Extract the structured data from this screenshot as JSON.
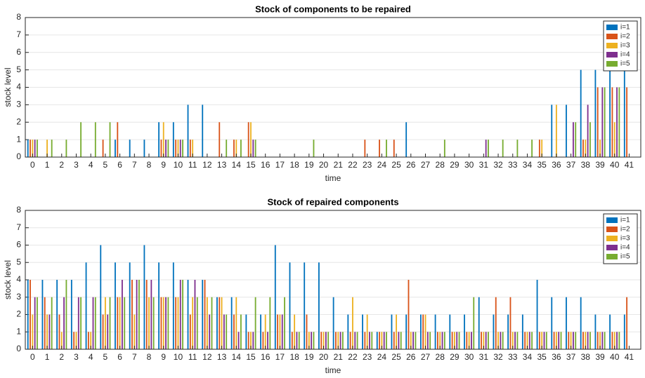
{
  "chart_data": [
    {
      "type": "bar",
      "title": "Stock of components to be repaired",
      "x_label": "time",
      "y_label": "stock level",
      "categories": [
        "0",
        "1",
        "2",
        "3",
        "4",
        "5",
        "6",
        "7",
        "8",
        "9",
        "10",
        "11",
        "12",
        "13",
        "14",
        "15",
        "16",
        "17",
        "18",
        "19",
        "20",
        "21",
        "22",
        "23",
        "24",
        "25",
        "26",
        "27",
        "28",
        "29",
        "30",
        "31",
        "32",
        "33",
        "34",
        "35",
        "36",
        "37",
        "38",
        "39",
        "40",
        "41"
      ],
      "ylim": [
        0,
        8
      ],
      "yticks": [
        0,
        1,
        2,
        3,
        4,
        5,
        6,
        7,
        8
      ],
      "legend": "upper right",
      "series": [
        {
          "name": "i=1",
          "color": "#0072BD",
          "values": [
            1,
            0,
            0,
            0,
            0,
            0,
            1,
            1,
            1,
            2,
            2,
            3,
            3,
            0,
            0,
            0,
            0,
            0,
            0,
            0,
            0,
            0,
            0,
            0,
            0,
            0,
            2,
            0,
            0,
            0,
            0,
            0,
            0,
            0,
            0,
            0,
            3,
            3,
            5,
            5,
            5,
            5
          ]
        },
        {
          "name": "i=2",
          "color": "#D95319",
          "values": [
            1,
            0,
            0,
            0,
            0,
            1,
            2,
            0,
            0,
            1,
            1,
            1,
            0,
            2,
            1,
            2,
            0,
            0,
            0,
            0,
            0,
            0,
            0,
            1,
            1,
            1,
            0,
            0,
            0,
            0,
            0,
            0,
            0,
            0,
            0,
            1,
            0,
            0,
            1,
            4,
            4,
            4
          ]
        },
        {
          "name": "i=3",
          "color": "#EDB120",
          "values": [
            1,
            1,
            0,
            0,
            0,
            0,
            0,
            0,
            0,
            2,
            1,
            1,
            0,
            0,
            1,
            2,
            0,
            0,
            0,
            0,
            0,
            0,
            0,
            0,
            0,
            0,
            0,
            0,
            0,
            0,
            0,
            0,
            0,
            0,
            0,
            1,
            3,
            0,
            1,
            1,
            2,
            0
          ]
        },
        {
          "name": "i=4",
          "color": "#7E2F8E",
          "values": [
            1,
            0,
            0,
            0,
            0,
            0,
            0,
            0,
            0,
            1,
            1,
            0,
            0,
            0,
            0,
            1,
            0,
            0,
            0,
            0,
            0,
            0,
            0,
            0,
            0,
            0,
            0,
            0,
            0,
            0,
            0,
            1,
            0,
            0,
            0,
            0,
            0,
            2,
            3,
            4,
            4,
            0
          ]
        },
        {
          "name": "i=5",
          "color": "#77AC30",
          "values": [
            1,
            1,
            1,
            2,
            2,
            2,
            0,
            0,
            0,
            1,
            1,
            0,
            0,
            1,
            1,
            1,
            0,
            0,
            0,
            1,
            0,
            0,
            0,
            0,
            1,
            0,
            0,
            0,
            1,
            0,
            0,
            1,
            1,
            1,
            1,
            0,
            0,
            2,
            2,
            4,
            4,
            0
          ]
        }
      ]
    },
    {
      "type": "bar",
      "title": "Stock of repaired components",
      "x_label": "time",
      "y_label": "stock level",
      "categories": [
        "0",
        "1",
        "2",
        "3",
        "4",
        "5",
        "6",
        "7",
        "8",
        "9",
        "10",
        "11",
        "12",
        "13",
        "14",
        "15",
        "16",
        "17",
        "18",
        "19",
        "20",
        "21",
        "22",
        "23",
        "24",
        "25",
        "26",
        "27",
        "28",
        "29",
        "30",
        "31",
        "32",
        "33",
        "34",
        "35",
        "36",
        "37",
        "38",
        "39",
        "40",
        "41"
      ],
      "ylim": [
        0,
        8
      ],
      "yticks": [
        0,
        1,
        2,
        3,
        4,
        5,
        6,
        7,
        8
      ],
      "legend": "upper right",
      "series": [
        {
          "name": "i=1",
          "color": "#0072BD",
          "values": [
            4,
            4,
            4,
            4,
            5,
            6,
            5,
            5,
            6,
            5,
            5,
            4,
            4,
            3,
            3,
            2,
            2,
            6,
            5,
            5,
            5,
            3,
            2,
            2,
            1,
            2,
            2,
            2,
            2,
            2,
            2,
            3,
            2,
            2,
            2,
            4,
            3,
            3,
            3,
            2,
            2,
            2
          ]
        },
        {
          "name": "i=2",
          "color": "#D95319",
          "values": [
            4,
            3,
            2,
            1,
            1,
            2,
            3,
            4,
            4,
            3,
            3,
            2,
            4,
            3,
            2,
            1,
            1,
            2,
            1,
            2,
            1,
            1,
            1,
            1,
            1,
            1,
            4,
            2,
            1,
            1,
            1,
            1,
            3,
            3,
            1,
            1,
            1,
            1,
            1,
            1,
            1,
            3
          ]
        },
        {
          "name": "i=3",
          "color": "#EDB120",
          "values": [
            2,
            2,
            1,
            1,
            1,
            3,
            3,
            2,
            3,
            3,
            3,
            3,
            3,
            3,
            3,
            1,
            2,
            2,
            2,
            1,
            1,
            1,
            3,
            2,
            1,
            2,
            1,
            2,
            1,
            1,
            1,
            1,
            1,
            1,
            1,
            1,
            1,
            1,
            1,
            1,
            1,
            0
          ]
        },
        {
          "name": "i=4",
          "color": "#7E2F8E",
          "values": [
            3,
            2,
            3,
            3,
            3,
            2,
            4,
            4,
            4,
            3,
            4,
            4,
            2,
            2,
            1,
            1,
            1,
            2,
            1,
            1,
            1,
            1,
            1,
            1,
            1,
            1,
            1,
            1,
            1,
            1,
            1,
            1,
            1,
            1,
            1,
            1,
            1,
            1,
            1,
            1,
            1,
            0
          ]
        },
        {
          "name": "i=5",
          "color": "#77AC30",
          "values": [
            3,
            3,
            4,
            3,
            3,
            3,
            3,
            4,
            3,
            3,
            4,
            3,
            3,
            2,
            2,
            3,
            3,
            3,
            1,
            1,
            1,
            1,
            1,
            1,
            1,
            1,
            1,
            1,
            1,
            1,
            3,
            1,
            1,
            1,
            1,
            1,
            1,
            1,
            1,
            1,
            1,
            0
          ]
        }
      ]
    }
  ]
}
